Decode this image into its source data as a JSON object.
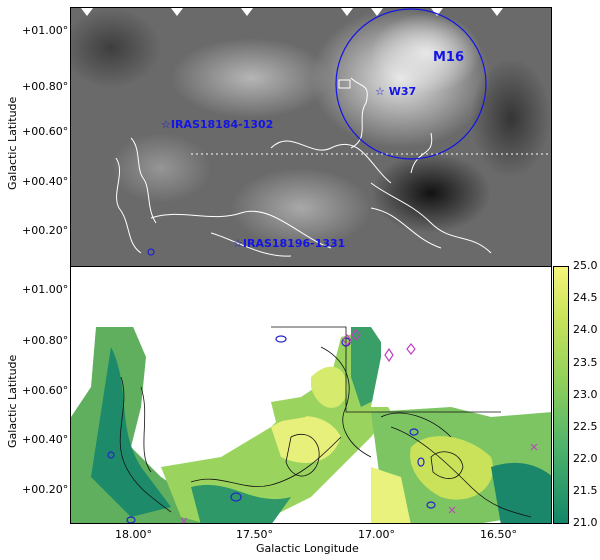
{
  "top_panel": {
    "ylabel": "Galactic Latitude",
    "yticks": [
      "+01.00°",
      "+00.80°",
      "+00.60°",
      "+00.40°",
      "+00.20°"
    ],
    "annotations": {
      "m16": "M16",
      "w37": "W37",
      "iras1": "IRAS18184-1302",
      "iras2": "IRAS18196-1331"
    }
  },
  "bottom_panel": {
    "ylabel": "Galactic Latitude",
    "xlabel": "Galactic Longitude",
    "yticks": [
      "+01.00°",
      "+00.80°",
      "+00.60°",
      "+00.40°",
      "+00.20°"
    ],
    "xticks": [
      "18.00°",
      "17.50°",
      "17.00°",
      "16.50°"
    ]
  },
  "colorbar": {
    "ticks": [
      "25.0",
      "24.5",
      "24.0",
      "23.5",
      "23.0",
      "22.5",
      "22.0",
      "21.5",
      "21.0"
    ],
    "colors": [
      "#f5f57a",
      "#c9e25a",
      "#8fcf5b",
      "#4fb36a",
      "#12866a"
    ]
  },
  "colors": {
    "annotation": "#1414e6",
    "contour_top": "#ffffff",
    "contour_bottom": "#111111"
  }
}
